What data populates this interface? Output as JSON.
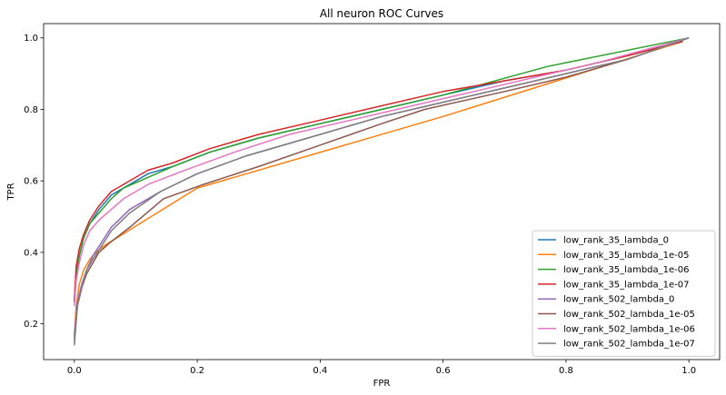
{
  "chart_data": {
    "type": "line",
    "title": "All neuron ROC Curves",
    "xlabel": "FPR",
    "ylabel": "TPR",
    "xlim": [
      -0.05,
      1.05
    ],
    "ylim": [
      0.1,
      1.04
    ],
    "xticks": [
      0.0,
      0.2,
      0.4,
      0.6,
      0.8,
      1.0
    ],
    "xtick_labels": [
      "0.0",
      "0.2",
      "0.4",
      "0.6",
      "0.8",
      "1.0"
    ],
    "yticks": [
      0.2,
      0.4,
      0.6,
      0.8,
      1.0
    ],
    "ytick_labels": [
      "0.2",
      "0.4",
      "0.6",
      "0.8",
      "1.0"
    ],
    "grid": false,
    "legend_position": "lower-right",
    "series": [
      {
        "name": "low_rank_35_lambda_0",
        "color": "#1f77b4",
        "x": [
          0.0,
          0.003,
          0.008,
          0.015,
          0.025,
          0.04,
          0.06,
          0.08,
          0.12,
          0.16,
          0.22,
          0.3,
          0.4,
          0.5,
          0.6,
          0.7,
          0.8,
          0.9,
          0.99
        ],
        "y": [
          0.27,
          0.34,
          0.39,
          0.44,
          0.48,
          0.52,
          0.56,
          0.58,
          0.62,
          0.64,
          0.68,
          0.72,
          0.76,
          0.8,
          0.84,
          0.88,
          0.91,
          0.95,
          0.99
        ]
      },
      {
        "name": "low_rank_35_lambda_1e-05",
        "color": "#ff7f0e",
        "x": [
          0.0,
          0.003,
          0.008,
          0.015,
          0.025,
          0.035,
          0.05,
          0.2,
          0.6,
          0.99
        ],
        "y": [
          0.16,
          0.25,
          0.31,
          0.35,
          0.38,
          0.4,
          0.42,
          0.58,
          0.78,
          0.99
        ]
      },
      {
        "name": "low_rank_35_lambda_1e-06",
        "color": "#2ca02c",
        "x": [
          0.0,
          0.003,
          0.008,
          0.015,
          0.025,
          0.04,
          0.06,
          0.08,
          0.12,
          0.16,
          0.22,
          0.3,
          0.4,
          0.5,
          0.6,
          0.77,
          1.0
        ],
        "y": [
          0.26,
          0.34,
          0.39,
          0.44,
          0.48,
          0.51,
          0.55,
          0.58,
          0.61,
          0.64,
          0.68,
          0.72,
          0.76,
          0.8,
          0.84,
          0.92,
          1.0
        ]
      },
      {
        "name": "low_rank_35_lambda_1e-07",
        "color": "#d62728",
        "x": [
          0.0,
          0.003,
          0.008,
          0.015,
          0.025,
          0.04,
          0.06,
          0.08,
          0.12,
          0.16,
          0.22,
          0.3,
          0.4,
          0.5,
          0.6,
          0.7,
          0.8,
          0.9,
          0.99
        ],
        "y": [
          0.26,
          0.36,
          0.41,
          0.45,
          0.49,
          0.53,
          0.57,
          0.59,
          0.63,
          0.65,
          0.69,
          0.73,
          0.77,
          0.81,
          0.85,
          0.88,
          0.91,
          0.95,
          0.99
        ]
      },
      {
        "name": "low_rank_502_lambda_0",
        "color": "#9467bd",
        "x": [
          0.0,
          0.005,
          0.012,
          0.02,
          0.03,
          0.045,
          0.06,
          0.09,
          0.14,
          0.2,
          0.28,
          0.38,
          0.5,
          0.6,
          0.7,
          0.8,
          0.9,
          1.0
        ],
        "y": [
          0.17,
          0.26,
          0.31,
          0.35,
          0.39,
          0.43,
          0.47,
          0.52,
          0.57,
          0.62,
          0.67,
          0.72,
          0.78,
          0.82,
          0.86,
          0.9,
          0.94,
          1.0
        ]
      },
      {
        "name": "low_rank_502_lambda_1e-05",
        "color": "#8c564b",
        "x": [
          0.0,
          0.005,
          0.012,
          0.02,
          0.03,
          0.04,
          0.06,
          0.09,
          0.145,
          0.21,
          0.3,
          0.4,
          0.5,
          0.57,
          0.7,
          0.8,
          0.9,
          1.0
        ],
        "y": [
          0.15,
          0.25,
          0.3,
          0.34,
          0.37,
          0.4,
          0.43,
          0.47,
          0.55,
          0.59,
          0.64,
          0.7,
          0.76,
          0.8,
          0.85,
          0.89,
          0.94,
          1.0
        ]
      },
      {
        "name": "low_rank_502_lambda_1e-06",
        "color": "#e377c2",
        "x": [
          0.0,
          0.003,
          0.008,
          0.015,
          0.025,
          0.04,
          0.06,
          0.08,
          0.12,
          0.18,
          0.26,
          0.35,
          0.45,
          0.55,
          0.65,
          0.75,
          0.85,
          1.0
        ],
        "y": [
          0.25,
          0.32,
          0.37,
          0.42,
          0.46,
          0.49,
          0.52,
          0.55,
          0.59,
          0.63,
          0.68,
          0.73,
          0.77,
          0.81,
          0.85,
          0.89,
          0.93,
          1.0
        ]
      },
      {
        "name": "low_rank_502_lambda_1e-07",
        "color": "#7f7f7f",
        "x": [
          0.0,
          0.005,
          0.012,
          0.02,
          0.03,
          0.045,
          0.06,
          0.09,
          0.14,
          0.2,
          0.28,
          0.38,
          0.5,
          0.6,
          0.7,
          0.8,
          0.9,
          1.0
        ],
        "y": [
          0.14,
          0.25,
          0.3,
          0.35,
          0.38,
          0.42,
          0.46,
          0.51,
          0.57,
          0.62,
          0.67,
          0.72,
          0.78,
          0.82,
          0.86,
          0.9,
          0.94,
          1.0
        ]
      }
    ]
  }
}
